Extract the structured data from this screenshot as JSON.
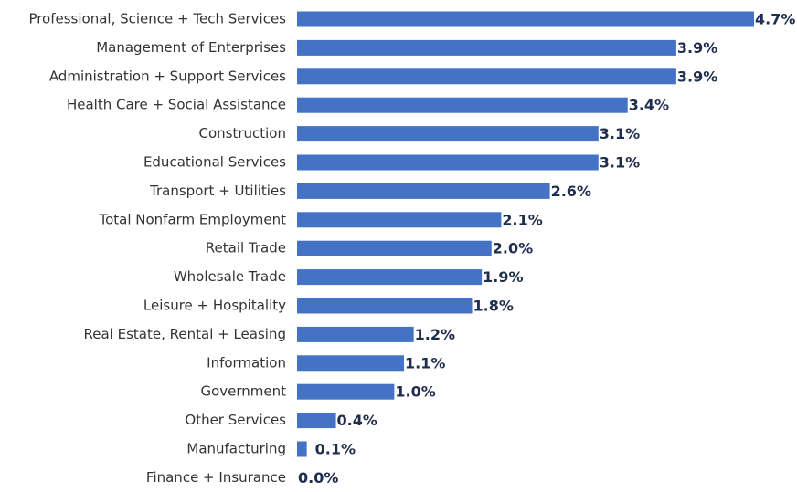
{
  "chart_data": {
    "type": "bar",
    "orientation": "horizontal",
    "color": "#4472c4",
    "categories": [
      "Professional, Science + Tech Services",
      "Management of Enterprises",
      "Administration + Support Services",
      "Health Care + Social Assistance",
      "Construction",
      "Educational Services",
      "Transport + Utilities",
      "Total Nonfarm Employment",
      "Retail Trade",
      "Wholesale Trade",
      "Leisure + Hospitality",
      "Real Estate, Rental + Leasing",
      "Information",
      "Government",
      "Other Services",
      "Manufacturing",
      "Finance + Insurance"
    ],
    "values": [
      4.7,
      3.9,
      3.9,
      3.4,
      3.1,
      3.1,
      2.6,
      2.1,
      2.0,
      1.9,
      1.8,
      1.2,
      1.1,
      1.0,
      0.4,
      0.1,
      0.0
    ],
    "value_labels": [
      "4.7%",
      "3.9%",
      "3.9%",
      "3.4%",
      "3.1%",
      "3.1%",
      "2.6%",
      "2.1%",
      "2.0%",
      "1.9%",
      "1.8%",
      "1.2%",
      "1.1%",
      "1.0%",
      "0.4%",
      "0.1%",
      "0.0%"
    ]
  }
}
